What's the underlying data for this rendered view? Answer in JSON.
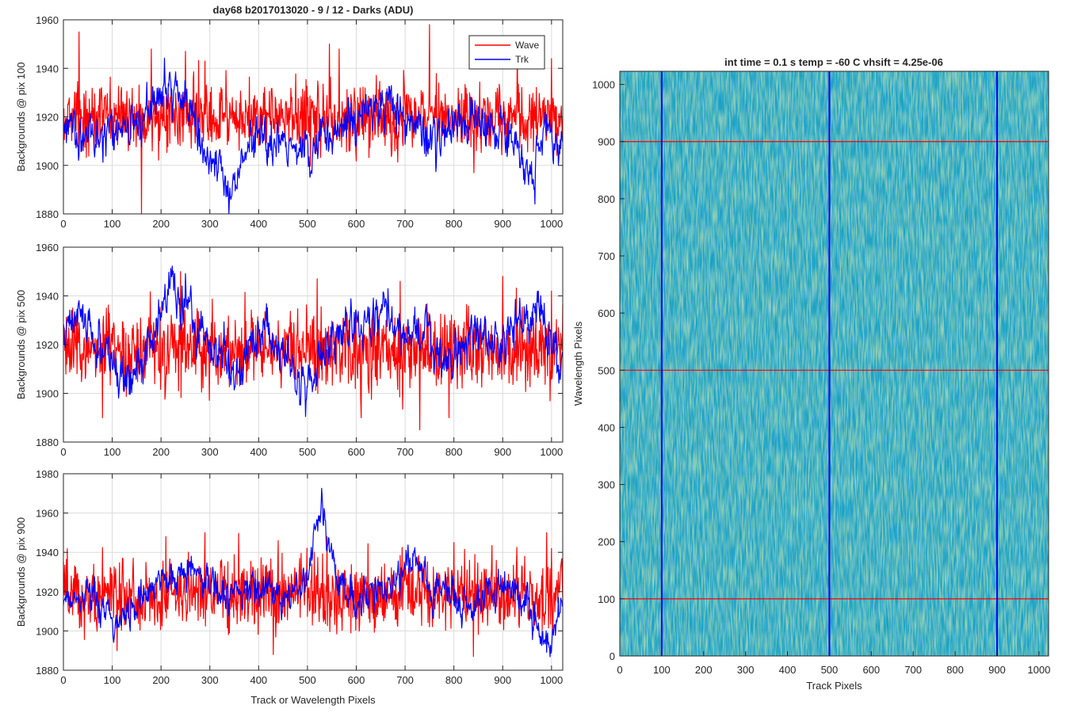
{
  "figure": {
    "suptitle": "day68 b2017013020 - 9 / 12 - Darks (ADU)",
    "legend": {
      "entries": [
        "Wave",
        "Trk"
      ],
      "placement": "top-right of first panel"
    }
  },
  "colors": {
    "wave": "#ff0000",
    "trk": "#0000ff",
    "grid": "#dcdcdc",
    "axis": "#262626",
    "heat_low": "#1f6fd1",
    "heat_mid": "#19a2c2",
    "heat_high": "#8ec36a"
  },
  "chart_data": [
    {
      "type": "line",
      "ylabel": "Backgrounds @ pix 100",
      "xlabel": "",
      "xlim": [
        0,
        1023
      ],
      "ylim": [
        1880,
        1960
      ],
      "xticks": [
        "0",
        "100",
        "200",
        "300",
        "400",
        "500",
        "600",
        "700",
        "800",
        "900",
        "1000"
      ],
      "yticks": [
        "1880",
        "1900",
        "1920",
        "1940",
        "1960"
      ],
      "grid": true,
      "series": [
        {
          "name": "Wave",
          "color": "#ff0000",
          "mean": 1920,
          "noise": 7,
          "spikes": [
            [
              32,
              1955
            ],
            [
              160,
              1880
            ],
            [
              180,
              1948
            ],
            [
              250,
              1947
            ],
            [
              290,
              1943
            ],
            [
              545,
              1950
            ],
            [
              565,
              1948
            ],
            [
              750,
              1958
            ],
            [
              930,
              1948
            ],
            [
              1000,
              1944
            ]
          ]
        },
        {
          "name": "Trk",
          "color": "#0000ff",
          "mean": 1918,
          "noise": 4,
          "knots": [
            [
              0,
              1915
            ],
            [
              50,
              1912
            ],
            [
              100,
              1916
            ],
            [
              150,
              1918
            ],
            [
              200,
              1928
            ],
            [
              230,
              1933
            ],
            [
              260,
              1925
            ],
            [
              300,
              1905
            ],
            [
              340,
              1890
            ],
            [
              380,
              1908
            ],
            [
              420,
              1910
            ],
            [
              460,
              1906
            ],
            [
              500,
              1904
            ],
            [
              540,
              1912
            ],
            [
              580,
              1918
            ],
            [
              620,
              1920
            ],
            [
              660,
              1926
            ],
            [
              700,
              1918
            ],
            [
              740,
              1915
            ],
            [
              780,
              1910
            ],
            [
              820,
              1920
            ],
            [
              860,
              1915
            ],
            [
              900,
              1918
            ],
            [
              940,
              1905
            ],
            [
              960,
              1893
            ],
            [
              990,
              1916
            ],
            [
              1023,
              1905
            ]
          ]
        }
      ]
    },
    {
      "type": "line",
      "ylabel": "Backgrounds @ pix 500",
      "xlabel": "",
      "xlim": [
        0,
        1023
      ],
      "ylim": [
        1880,
        1960
      ],
      "xticks": [
        "0",
        "100",
        "200",
        "300",
        "400",
        "500",
        "600",
        "700",
        "800",
        "900",
        "1000"
      ],
      "yticks": [
        "1880",
        "1900",
        "1920",
        "1940",
        "1960"
      ],
      "grid": true,
      "series": [
        {
          "name": "Wave",
          "color": "#ff0000",
          "mean": 1918,
          "noise": 8,
          "spikes": [
            [
              80,
              1890
            ],
            [
              240,
              1950
            ],
            [
              520,
              1947
            ],
            [
              610,
              1890
            ],
            [
              730,
              1885
            ],
            [
              790,
              1890
            ],
            [
              1000,
              1895
            ],
            [
              1000,
              1942
            ],
            [
              690,
              1946
            ],
            [
              900,
              1948
            ]
          ]
        },
        {
          "name": "Trk",
          "color": "#0000ff",
          "mean": 1920,
          "noise": 4,
          "knots": [
            [
              0,
              1925
            ],
            [
              40,
              1935
            ],
            [
              70,
              1918
            ],
            [
              110,
              1908
            ],
            [
              150,
              1912
            ],
            [
              190,
              1925
            ],
            [
              220,
              1945
            ],
            [
              260,
              1932
            ],
            [
              300,
              1920
            ],
            [
              340,
              1910
            ],
            [
              380,
              1918
            ],
            [
              420,
              1925
            ],
            [
              460,
              1915
            ],
            [
              490,
              1900
            ],
            [
              520,
              1912
            ],
            [
              560,
              1922
            ],
            [
              600,
              1928
            ],
            [
              640,
              1930
            ],
            [
              660,
              1938
            ],
            [
              700,
              1920
            ],
            [
              740,
              1925
            ],
            [
              780,
              1910
            ],
            [
              820,
              1920
            ],
            [
              860,
              1925
            ],
            [
              900,
              1918
            ],
            [
              940,
              1928
            ],
            [
              970,
              1935
            ],
            [
              1000,
              1922
            ],
            [
              1023,
              1910
            ]
          ]
        }
      ]
    },
    {
      "type": "line",
      "ylabel": "Backgrounds @ pix 900",
      "xlabel": "Track or Wavelength Pixels",
      "xlim": [
        0,
        1023
      ],
      "ylim": [
        1880,
        1980
      ],
      "xticks": [
        "0",
        "100",
        "200",
        "300",
        "400",
        "500",
        "600",
        "700",
        "800",
        "900",
        "1000"
      ],
      "yticks": [
        "1880",
        "1900",
        "1920",
        "1940",
        "1960",
        "1980"
      ],
      "grid": true,
      "series": [
        {
          "name": "Wave",
          "color": "#ff0000",
          "mean": 1918,
          "noise": 9,
          "spikes": [
            [
              210,
              1948
            ],
            [
              290,
              1950
            ],
            [
              440,
              1946
            ],
            [
              540,
              1948
            ],
            [
              800,
              1945
            ],
            [
              840,
              1887
            ],
            [
              990,
              1950
            ],
            [
              110,
              1890
            ],
            [
              430,
              1888
            ]
          ]
        },
        {
          "name": "Trk",
          "color": "#0000ff",
          "mean": 1920,
          "noise": 4,
          "knots": [
            [
              0,
              1918
            ],
            [
              60,
              1915
            ],
            [
              110,
              1905
            ],
            [
              160,
              1915
            ],
            [
              200,
              1925
            ],
            [
              260,
              1930
            ],
            [
              300,
              1925
            ],
            [
              340,
              1918
            ],
            [
              380,
              1922
            ],
            [
              420,
              1920
            ],
            [
              460,
              1918
            ],
            [
              500,
              1930
            ],
            [
              530,
              1965
            ],
            [
              560,
              1925
            ],
            [
              600,
              1915
            ],
            [
              640,
              1918
            ],
            [
              680,
              1925
            ],
            [
              720,
              1935
            ],
            [
              760,
              1920
            ],
            [
              800,
              1918
            ],
            [
              840,
              1915
            ],
            [
              880,
              1920
            ],
            [
              920,
              1925
            ],
            [
              950,
              1915
            ],
            [
              970,
              1900
            ],
            [
              1000,
              1895
            ],
            [
              1023,
              1915
            ]
          ]
        }
      ]
    },
    {
      "type": "heatmap",
      "title": "int time = 0.1 s   temp = -60 C   vhsift = 4.25e-06",
      "xlabel": "Track Pixels",
      "ylabel": "Wavelength Pixels",
      "xlim": [
        0,
        1023
      ],
      "ylim": [
        0,
        1023
      ],
      "xticks": [
        "0",
        "100",
        "200",
        "300",
        "400",
        "500",
        "600",
        "700",
        "800",
        "900",
        "1000"
      ],
      "yticks": [
        "0",
        "100",
        "200",
        "300",
        "400",
        "500",
        "600",
        "700",
        "800",
        "900",
        "1000"
      ],
      "vertical_lines": [
        100,
        500,
        900
      ],
      "horizontal_lines": [
        100,
        500,
        900
      ]
    }
  ]
}
